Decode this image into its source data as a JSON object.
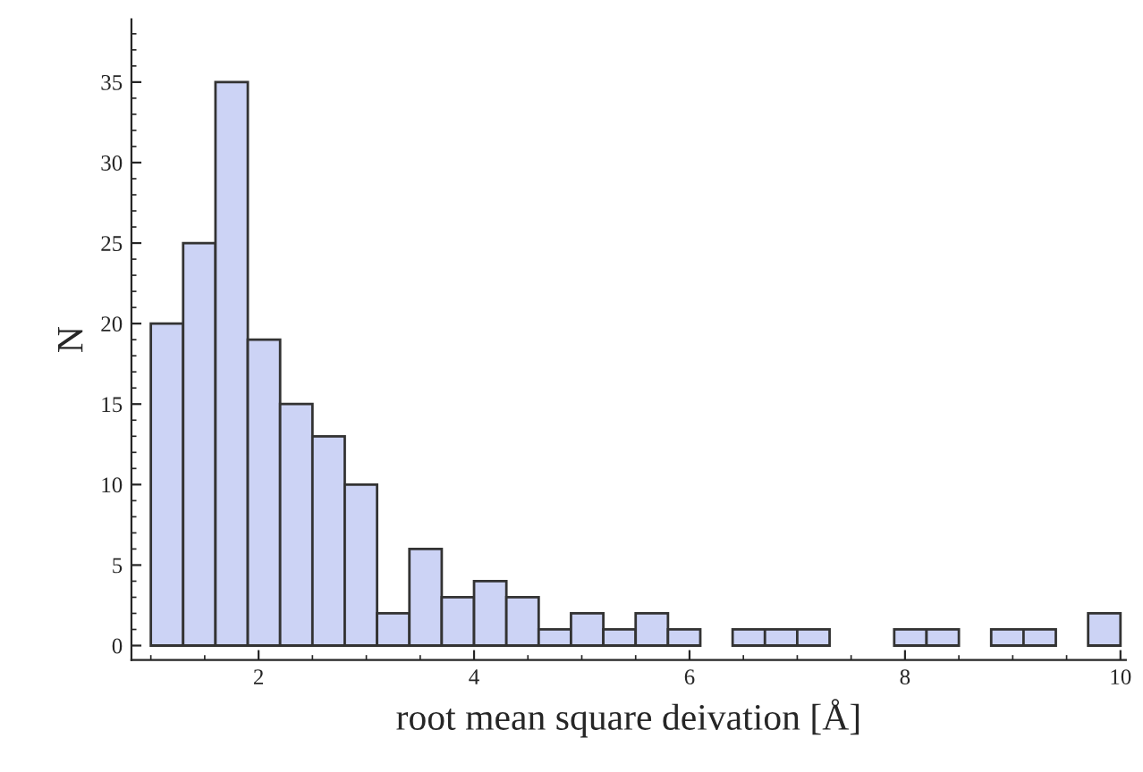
{
  "chart_data": {
    "type": "histogram",
    "xlabel": "root mean square deivation [Å]",
    "ylabel": "N",
    "bins": [
      1.0,
      1.3,
      1.6,
      1.9,
      2.2,
      2.5,
      2.8,
      3.1,
      3.4,
      3.7,
      4.0,
      4.3,
      4.6,
      4.9,
      5.2,
      5.5,
      5.8,
      6.1,
      6.4,
      6.7,
      7.0,
      7.3,
      7.6,
      7.9,
      8.2,
      8.5,
      8.8,
      9.1,
      9.4,
      9.7,
      10.0
    ],
    "values": [
      20,
      25,
      35,
      19,
      15,
      13,
      10,
      2,
      6,
      3,
      4,
      3,
      1,
      2,
      1,
      2,
      1,
      0,
      1,
      1,
      1,
      0,
      0,
      1,
      1,
      0,
      1,
      1,
      0,
      2
    ],
    "color": "#ccd3f5",
    "xlim": [
      0.82,
      10.05
    ],
    "ylim": [
      -0.9,
      38.9
    ],
    "xticks": [
      2,
      4,
      6,
      8,
      10
    ],
    "yticks": [
      0,
      5,
      10,
      15,
      20,
      25,
      30,
      35
    ],
    "grid": false,
    "legend": false
  }
}
